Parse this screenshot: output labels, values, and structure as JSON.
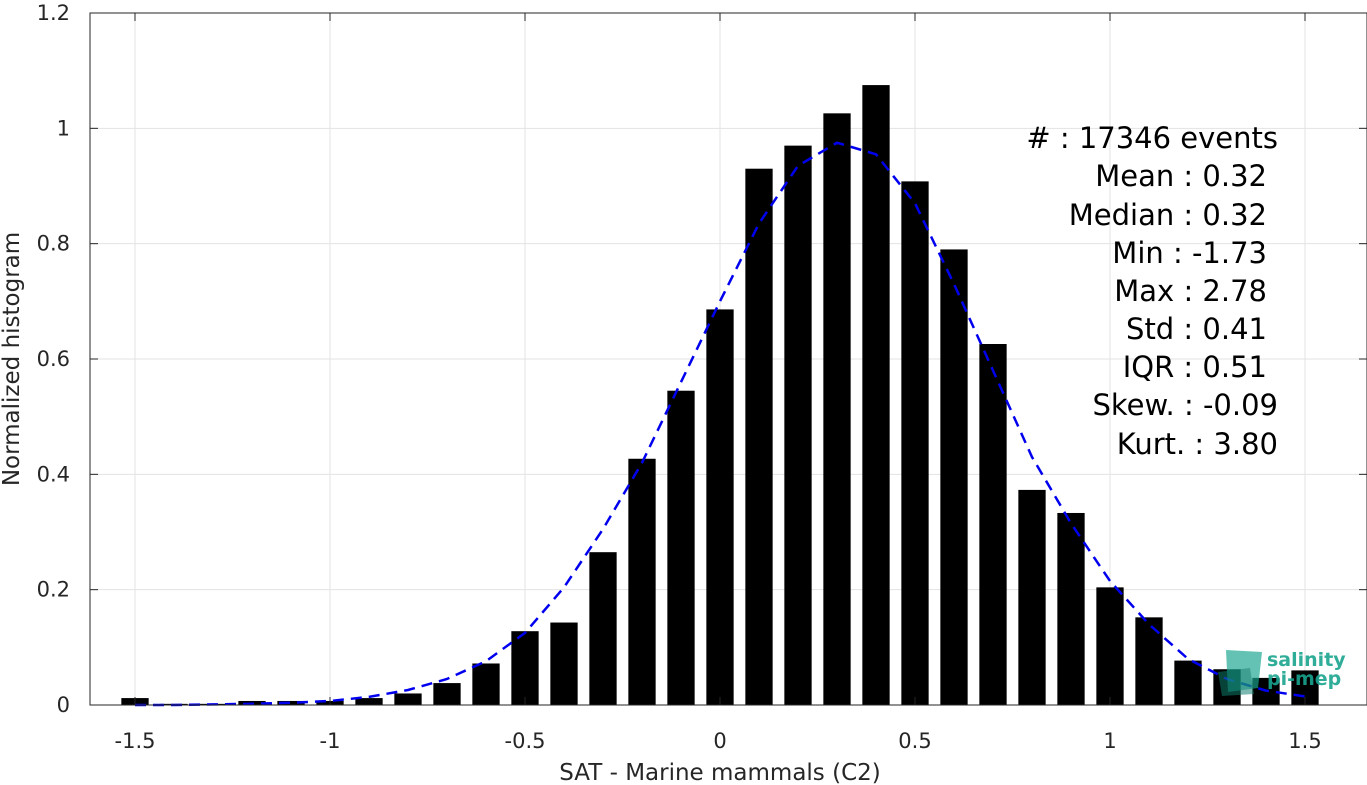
{
  "chart_data": {
    "type": "bar",
    "xlabel": "SAT - Marine mammals (C2)",
    "ylabel": "Normalized histogram",
    "xlim": [
      -1.6,
      1.6
    ],
    "ylim": [
      0,
      1.2
    ],
    "xticks": [
      -1.5,
      -1,
      -0.5,
      0,
      0.5,
      1,
      1.5
    ],
    "xtick_labels": [
      "-1.5",
      "-1",
      "-0.5",
      "0",
      "0.5",
      "1",
      "1.5"
    ],
    "yticks": [
      0,
      0.2,
      0.4,
      0.6,
      0.8,
      1,
      1.2
    ],
    "ytick_labels": [
      "0",
      "0.2",
      "0.4",
      "0.6",
      "0.8",
      "1",
      "1.2"
    ],
    "grid": true,
    "bar_color": "#000000",
    "bar_width": 0.07,
    "x": [
      -1.5,
      -1.4,
      -1.3,
      -1.2,
      -1.1,
      -1.0,
      -0.9,
      -0.8,
      -0.7,
      -0.6,
      -0.5,
      -0.4,
      -0.3,
      -0.2,
      -0.1,
      0.0,
      0.1,
      0.2,
      0.3,
      0.4,
      0.5,
      0.6,
      0.7,
      0.8,
      0.9,
      1.0,
      1.1,
      1.2,
      1.3,
      1.4,
      1.5
    ],
    "values": [
      0.012,
      0.002,
      0.002,
      0.007,
      0.007,
      0.007,
      0.012,
      0.02,
      0.038,
      0.072,
      0.128,
      0.143,
      0.265,
      0.427,
      0.545,
      0.686,
      0.93,
      0.97,
      1.026,
      1.075,
      0.908,
      0.79,
      0.626,
      0.373,
      0.333,
      0.204,
      0.152,
      0.077,
      0.062,
      0.047,
      0.06
    ],
    "fit_curve": {
      "color": "#0000ee",
      "style": "dashed",
      "x": [
        -1.5,
        -1.4,
        -1.3,
        -1.2,
        -1.1,
        -1.0,
        -0.9,
        -0.8,
        -0.7,
        -0.6,
        -0.5,
        -0.4,
        -0.3,
        -0.2,
        -0.1,
        0.0,
        0.1,
        0.2,
        0.3,
        0.4,
        0.5,
        0.6,
        0.7,
        0.8,
        0.9,
        1.0,
        1.1,
        1.2,
        1.3,
        1.4,
        1.5
      ],
      "y": [
        0.0,
        0.0,
        0.001,
        0.002,
        0.004,
        0.007,
        0.014,
        0.026,
        0.045,
        0.076,
        0.125,
        0.204,
        0.305,
        0.42,
        0.56,
        0.7,
        0.835,
        0.935,
        0.975,
        0.955,
        0.87,
        0.73,
        0.58,
        0.43,
        0.315,
        0.215,
        0.14,
        0.08,
        0.045,
        0.025,
        0.015
      ]
    }
  },
  "stats": [
    "#  : 17346 events",
    "Mean : 0.32",
    "Median : 0.32",
    "Min : -1.73",
    "Max : 2.78",
    "Std : 0.41",
    "IQR : 0.51",
    "Skew. : -0.09",
    "Kurt. : 3.80"
  ],
  "logo": {
    "line1": "salinity",
    "line2": "pi-mep",
    "color": "#1aa58f"
  }
}
